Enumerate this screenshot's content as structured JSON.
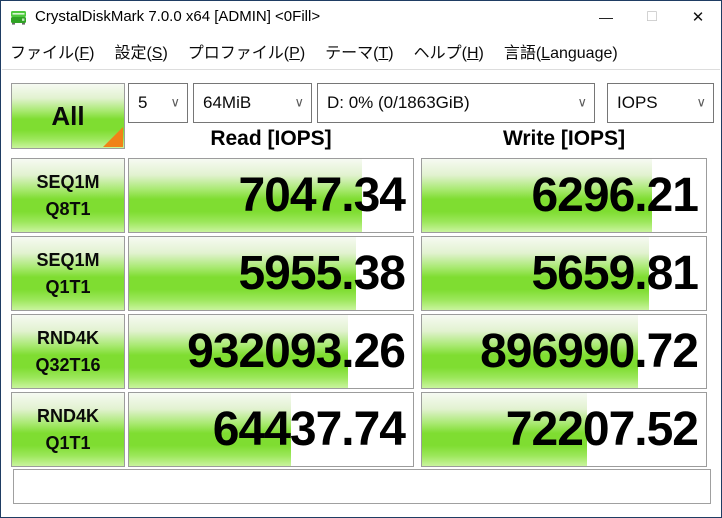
{
  "window": {
    "title": "CrystalDiskMark 7.0.0 x64 [ADMIN] <0Fill>",
    "minimize_glyph": "—",
    "maximize_glyph": "□",
    "close_glyph": "✕"
  },
  "menu": {
    "items": [
      {
        "pre": "ファイル(",
        "key": "F",
        "post": ")"
      },
      {
        "pre": "設定(",
        "key": "S",
        "post": ")"
      },
      {
        "pre": "プロファイル(",
        "key": "P",
        "post": ")"
      },
      {
        "pre": "テーマ(",
        "key": "T",
        "post": ")"
      },
      {
        "pre": "ヘルプ(",
        "key": "H",
        "post": ")"
      },
      {
        "pre": "言語(",
        "key": "L",
        "post": "anguage)"
      }
    ]
  },
  "toolbar": {
    "all_button_label": "All",
    "test_count_value": "5",
    "test_size_value": "64MiB",
    "target_drive_value": "D: 0% (0/1863GiB)",
    "unit_value": "IOPS",
    "combo_chevron_icon": "∨"
  },
  "results": {
    "read_header": "Read [IOPS]",
    "write_header": "Write [IOPS]",
    "rows": [
      {
        "test": "SEQ1M",
        "qt": "Q8T1",
        "read": "7047.34",
        "write": "6296.21",
        "read_bar_percent": 82,
        "write_bar_percent": 81
      },
      {
        "test": "SEQ1M",
        "qt": "Q1T1",
        "read": "5955.38",
        "write": "5659.81",
        "read_bar_percent": 80,
        "write_bar_percent": 80
      },
      {
        "test": "RND4K",
        "qt": "Q32T16",
        "read": "932093.26",
        "write": "896990.72",
        "read_bar_percent": 77,
        "write_bar_percent": 76
      },
      {
        "test": "RND4K",
        "qt": "Q1T1",
        "read": "64437.74",
        "write": "72207.52",
        "read_bar_percent": 57,
        "write_bar_percent": 58
      }
    ]
  },
  "footer": {
    "comment_value": ""
  },
  "colors": {
    "meter_green": "#7fdd31",
    "corner_orange": "#f08218",
    "window_border": "#1f3d63"
  }
}
